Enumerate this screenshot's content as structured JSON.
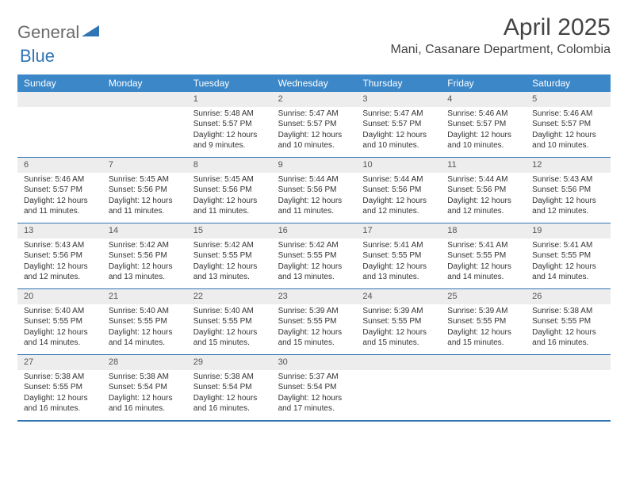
{
  "logo": {
    "part1": "General",
    "part2": "Blue"
  },
  "title": "April 2025",
  "location": "Mani, Casanare Department, Colombia",
  "dayHeaders": [
    "Sunday",
    "Monday",
    "Tuesday",
    "Wednesday",
    "Thursday",
    "Friday",
    "Saturday"
  ],
  "colors": {
    "headerBg": "#3b87c8",
    "accent": "#2f74b5",
    "dayNumBg": "#ededed",
    "text": "#333333"
  },
  "weeks": [
    [
      {
        "empty": true
      },
      {
        "empty": true
      },
      {
        "num": "1",
        "sunrise": "Sunrise: 5:48 AM",
        "sunset": "Sunset: 5:57 PM",
        "daylight": "Daylight: 12 hours and 9 minutes."
      },
      {
        "num": "2",
        "sunrise": "Sunrise: 5:47 AM",
        "sunset": "Sunset: 5:57 PM",
        "daylight": "Daylight: 12 hours and 10 minutes."
      },
      {
        "num": "3",
        "sunrise": "Sunrise: 5:47 AM",
        "sunset": "Sunset: 5:57 PM",
        "daylight": "Daylight: 12 hours and 10 minutes."
      },
      {
        "num": "4",
        "sunrise": "Sunrise: 5:46 AM",
        "sunset": "Sunset: 5:57 PM",
        "daylight": "Daylight: 12 hours and 10 minutes."
      },
      {
        "num": "5",
        "sunrise": "Sunrise: 5:46 AM",
        "sunset": "Sunset: 5:57 PM",
        "daylight": "Daylight: 12 hours and 10 minutes."
      }
    ],
    [
      {
        "num": "6",
        "sunrise": "Sunrise: 5:46 AM",
        "sunset": "Sunset: 5:57 PM",
        "daylight": "Daylight: 12 hours and 11 minutes."
      },
      {
        "num": "7",
        "sunrise": "Sunrise: 5:45 AM",
        "sunset": "Sunset: 5:56 PM",
        "daylight": "Daylight: 12 hours and 11 minutes."
      },
      {
        "num": "8",
        "sunrise": "Sunrise: 5:45 AM",
        "sunset": "Sunset: 5:56 PM",
        "daylight": "Daylight: 12 hours and 11 minutes."
      },
      {
        "num": "9",
        "sunrise": "Sunrise: 5:44 AM",
        "sunset": "Sunset: 5:56 PM",
        "daylight": "Daylight: 12 hours and 11 minutes."
      },
      {
        "num": "10",
        "sunrise": "Sunrise: 5:44 AM",
        "sunset": "Sunset: 5:56 PM",
        "daylight": "Daylight: 12 hours and 12 minutes."
      },
      {
        "num": "11",
        "sunrise": "Sunrise: 5:44 AM",
        "sunset": "Sunset: 5:56 PM",
        "daylight": "Daylight: 12 hours and 12 minutes."
      },
      {
        "num": "12",
        "sunrise": "Sunrise: 5:43 AM",
        "sunset": "Sunset: 5:56 PM",
        "daylight": "Daylight: 12 hours and 12 minutes."
      }
    ],
    [
      {
        "num": "13",
        "sunrise": "Sunrise: 5:43 AM",
        "sunset": "Sunset: 5:56 PM",
        "daylight": "Daylight: 12 hours and 12 minutes."
      },
      {
        "num": "14",
        "sunrise": "Sunrise: 5:42 AM",
        "sunset": "Sunset: 5:56 PM",
        "daylight": "Daylight: 12 hours and 13 minutes."
      },
      {
        "num": "15",
        "sunrise": "Sunrise: 5:42 AM",
        "sunset": "Sunset: 5:55 PM",
        "daylight": "Daylight: 12 hours and 13 minutes."
      },
      {
        "num": "16",
        "sunrise": "Sunrise: 5:42 AM",
        "sunset": "Sunset: 5:55 PM",
        "daylight": "Daylight: 12 hours and 13 minutes."
      },
      {
        "num": "17",
        "sunrise": "Sunrise: 5:41 AM",
        "sunset": "Sunset: 5:55 PM",
        "daylight": "Daylight: 12 hours and 13 minutes."
      },
      {
        "num": "18",
        "sunrise": "Sunrise: 5:41 AM",
        "sunset": "Sunset: 5:55 PM",
        "daylight": "Daylight: 12 hours and 14 minutes."
      },
      {
        "num": "19",
        "sunrise": "Sunrise: 5:41 AM",
        "sunset": "Sunset: 5:55 PM",
        "daylight": "Daylight: 12 hours and 14 minutes."
      }
    ],
    [
      {
        "num": "20",
        "sunrise": "Sunrise: 5:40 AM",
        "sunset": "Sunset: 5:55 PM",
        "daylight": "Daylight: 12 hours and 14 minutes."
      },
      {
        "num": "21",
        "sunrise": "Sunrise: 5:40 AM",
        "sunset": "Sunset: 5:55 PM",
        "daylight": "Daylight: 12 hours and 14 minutes."
      },
      {
        "num": "22",
        "sunrise": "Sunrise: 5:40 AM",
        "sunset": "Sunset: 5:55 PM",
        "daylight": "Daylight: 12 hours and 15 minutes."
      },
      {
        "num": "23",
        "sunrise": "Sunrise: 5:39 AM",
        "sunset": "Sunset: 5:55 PM",
        "daylight": "Daylight: 12 hours and 15 minutes."
      },
      {
        "num": "24",
        "sunrise": "Sunrise: 5:39 AM",
        "sunset": "Sunset: 5:55 PM",
        "daylight": "Daylight: 12 hours and 15 minutes."
      },
      {
        "num": "25",
        "sunrise": "Sunrise: 5:39 AM",
        "sunset": "Sunset: 5:55 PM",
        "daylight": "Daylight: 12 hours and 15 minutes."
      },
      {
        "num": "26",
        "sunrise": "Sunrise: 5:38 AM",
        "sunset": "Sunset: 5:55 PM",
        "daylight": "Daylight: 12 hours and 16 minutes."
      }
    ],
    [
      {
        "num": "27",
        "sunrise": "Sunrise: 5:38 AM",
        "sunset": "Sunset: 5:55 PM",
        "daylight": "Daylight: 12 hours and 16 minutes."
      },
      {
        "num": "28",
        "sunrise": "Sunrise: 5:38 AM",
        "sunset": "Sunset: 5:54 PM",
        "daylight": "Daylight: 12 hours and 16 minutes."
      },
      {
        "num": "29",
        "sunrise": "Sunrise: 5:38 AM",
        "sunset": "Sunset: 5:54 PM",
        "daylight": "Daylight: 12 hours and 16 minutes."
      },
      {
        "num": "30",
        "sunrise": "Sunrise: 5:37 AM",
        "sunset": "Sunset: 5:54 PM",
        "daylight": "Daylight: 12 hours and 17 minutes."
      },
      {
        "empty": true
      },
      {
        "empty": true
      },
      {
        "empty": true
      }
    ]
  ]
}
